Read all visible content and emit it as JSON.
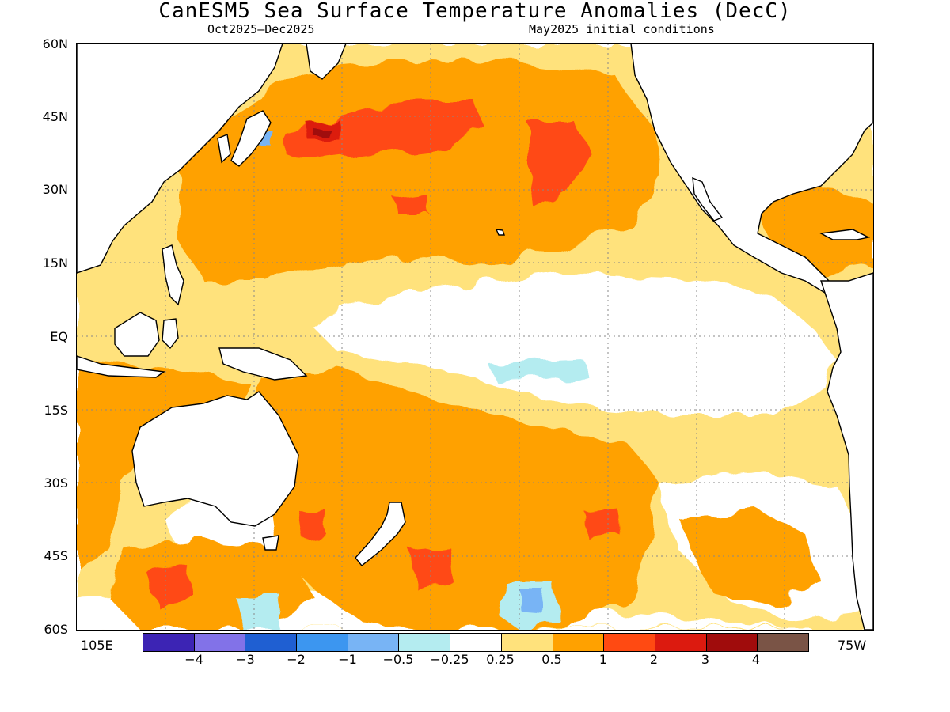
{
  "header": {
    "title": "CanESM5 Sea Surface Temperature Anomalies (DecC)",
    "period": "Oct2025–Dec2025",
    "init": "May2025 initial conditions"
  },
  "map": {
    "lat_labels": [
      "60N",
      "45N",
      "30N",
      "15N",
      "EQ",
      "15S",
      "30S",
      "45S",
      "60S"
    ],
    "lon_left": "105E",
    "lon_right": "75W",
    "lat_range": [
      -60,
      60
    ],
    "lon_range_degE": [
      105,
      285
    ],
    "gridlines": true
  },
  "colorbar": {
    "levels": [
      "−4",
      "−3",
      "−2",
      "−1",
      "−0.5",
      "−0.25",
      "0.25",
      "0.5",
      "1",
      "2",
      "3",
      "4"
    ],
    "colors": [
      "#3c24b4",
      "#8272e8",
      "#1f5fd2",
      "#3c96f0",
      "#78b4f5",
      "#b4ecf0",
      "#ffffff",
      "#ffe27c",
      "#ffa100",
      "#ff4a12",
      "#dc1a0f",
      "#a00c0c",
      "#7a5446"
    ]
  }
}
